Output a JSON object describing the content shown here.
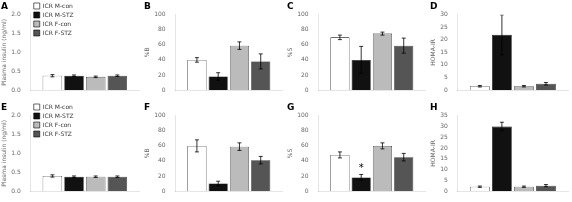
{
  "chart_data": [
    {
      "type": "bar",
      "title": "A",
      "ylabel": "Plasma insulin (ng/ml)",
      "categories": [
        null
      ],
      "series": [
        {
          "name": "ICR M-con",
          "color": "white",
          "values": [
            0.38
          ],
          "errors": [
            0.03
          ]
        },
        {
          "name": "ICR M-STZ",
          "color": "#111111",
          "values": [
            0.38
          ],
          "errors": [
            0.02
          ]
        },
        {
          "name": "ICR F-con",
          "color": "#bbbbbb",
          "values": [
            0.35
          ],
          "errors": [
            0.02
          ]
        },
        {
          "name": "ICR F-STZ",
          "color": "#555555",
          "values": [
            0.38
          ],
          "errors": [
            0.02
          ]
        }
      ],
      "ylim": [
        0,
        2.0
      ],
      "yticks": [
        {
          "value": 0.0,
          "label": "0.0"
        },
        {
          "value": 0.5,
          "label": "0.5"
        },
        {
          "value": 1.0,
          "label": "1.0"
        },
        {
          "value": 1.5,
          "label": "1.5"
        },
        {
          "value": 2.0,
          "label": "2.0"
        }
      ],
      "grid": false,
      "tick_labels": "y",
      "legend": "upper left"
    },
    {
      "type": "bar",
      "title": "B",
      "ylabel": "%B",
      "categories": [
        null
      ],
      "series": [
        {
          "name": "ICR M-con",
          "color": "white",
          "values": [
            40
          ],
          "errors": [
            3
          ]
        },
        {
          "name": "ICR M-STZ",
          "color": "#111111",
          "values": [
            18
          ],
          "errors": [
            5
          ]
        },
        {
          "name": "ICR F-con",
          "color": "#bbbbbb",
          "values": [
            59
          ],
          "errors": [
            5
          ]
        },
        {
          "name": "ICR F-STZ",
          "color": "#555555",
          "values": [
            38
          ],
          "errors": [
            10
          ]
        }
      ],
      "ylim": [
        0,
        100
      ],
      "yticks": [
        0,
        20,
        40,
        60,
        80,
        100
      ],
      "grid": false,
      "tick_labels": "y"
    },
    {
      "type": "bar",
      "title": "C",
      "ylabel": "%S",
      "categories": [
        null
      ],
      "series": [
        {
          "name": "ICR M-con",
          "color": "white",
          "values": [
            70
          ],
          "errors": [
            3
          ]
        },
        {
          "name": "ICR M-STZ",
          "color": "#111111",
          "values": [
            40
          ],
          "errors": [
            18
          ]
        },
        {
          "name": "ICR F-con",
          "color": "#bbbbbb",
          "values": [
            75
          ],
          "errors": [
            2
          ]
        },
        {
          "name": "ICR F-STZ",
          "color": "#555555",
          "values": [
            59
          ],
          "errors": [
            10
          ]
        }
      ],
      "ylim": [
        0,
        100
      ],
      "yticks": [
        0,
        20,
        40,
        60,
        80,
        100
      ],
      "grid": false,
      "tick_labels": "y"
    },
    {
      "type": "bar",
      "title": "D",
      "ylabel": "HOMA-IR",
      "categories": [
        null
      ],
      "series": [
        {
          "name": "ICR M-con",
          "color": "white",
          "values": [
            1.5
          ],
          "errors": [
            0.3
          ]
        },
        {
          "name": "ICR M-STZ",
          "color": "#111111",
          "values": [
            22
          ],
          "errors": [
            8
          ]
        },
        {
          "name": "ICR F-con",
          "color": "#bbbbbb",
          "values": [
            1.5
          ],
          "errors": [
            0.3
          ]
        },
        {
          "name": "ICR F-STZ",
          "color": "#555555",
          "values": [
            2.5
          ],
          "errors": [
            0.5
          ]
        }
      ],
      "ylim": [
        0,
        30
      ],
      "yticks": [
        0,
        5,
        10,
        15,
        20,
        25,
        30
      ],
      "grid": false,
      "tick_labels": "y"
    },
    {
      "type": "bar",
      "title": "E",
      "ylabel": "Plasma insulin (ng/ml)",
      "categories": [
        null
      ],
      "series": [
        {
          "name": "ICR M-con",
          "color": "white",
          "values": [
            0.4
          ],
          "errors": [
            0.03
          ]
        },
        {
          "name": "ICR M-STZ",
          "color": "#111111",
          "values": [
            0.38
          ],
          "errors": [
            0.02
          ]
        },
        {
          "name": "ICR F-con",
          "color": "#bbbbbb",
          "values": [
            0.38
          ],
          "errors": [
            0.02
          ]
        },
        {
          "name": "ICR F-STZ",
          "color": "#555555",
          "values": [
            0.38
          ],
          "errors": [
            0.02
          ]
        }
      ],
      "ylim": [
        0,
        2.0
      ],
      "yticks": [
        {
          "value": 0.0,
          "label": "0.0"
        },
        {
          "value": 0.5,
          "label": "0.5"
        },
        {
          "value": 1.0,
          "label": "1.0"
        },
        {
          "value": 1.5,
          "label": "1.5"
        },
        {
          "value": 2.0,
          "label": "2.0"
        }
      ],
      "grid": false,
      "tick_labels": "y",
      "legend": "upper left"
    },
    {
      "type": "bar",
      "title": "F",
      "ylabel": "%B",
      "categories": [
        null
      ],
      "series": [
        {
          "name": "ICR M-con",
          "color": "white",
          "values": [
            60
          ],
          "errors": [
            8
          ]
        },
        {
          "name": "ICR M-STZ",
          "color": "#111111",
          "values": [
            10
          ],
          "errors": [
            3
          ]
        },
        {
          "name": "ICR F-con",
          "color": "#bbbbbb",
          "values": [
            59
          ],
          "errors": [
            5
          ]
        },
        {
          "name": "ICR F-STZ",
          "color": "#555555",
          "values": [
            41
          ],
          "errors": [
            5
          ]
        }
      ],
      "ylim": [
        0,
        100
      ],
      "yticks": [
        0,
        20,
        40,
        60,
        80,
        100
      ],
      "grid": false,
      "tick_labels": "y"
    },
    {
      "type": "bar",
      "title": "G",
      "ylabel": "%S",
      "categories": [
        null
      ],
      "series": [
        {
          "name": "ICR M-con",
          "color": "white",
          "values": [
            48
          ],
          "errors": [
            4
          ]
        },
        {
          "name": "ICR M-STZ",
          "color": "#111111",
          "values": [
            18
          ],
          "errors": [
            4
          ]
        },
        {
          "name": "ICR F-con",
          "color": "#bbbbbb",
          "values": [
            60
          ],
          "errors": [
            4
          ]
        },
        {
          "name": "ICR F-STZ",
          "color": "#555555",
          "values": [
            45
          ],
          "errors": [
            5
          ]
        }
      ],
      "ylim": [
        0,
        100
      ],
      "yticks": [
        0,
        20,
        40,
        60,
        80,
        100
      ],
      "grid": false,
      "tick_labels": "y",
      "annotations": [
        {
          "text": "*",
          "series": "ICR M-STZ"
        }
      ]
    },
    {
      "type": "bar",
      "title": "H",
      "ylabel": "HOMA-IR",
      "categories": [
        null
      ],
      "series": [
        {
          "name": "ICR M-con",
          "color": "white",
          "values": [
            2
          ],
          "errors": [
            0.3
          ]
        },
        {
          "name": "ICR M-STZ",
          "color": "#111111",
          "values": [
            30
          ],
          "errors": [
            2
          ]
        },
        {
          "name": "ICR F-con",
          "color": "#bbbbbb",
          "values": [
            2
          ],
          "errors": [
            0.3
          ]
        },
        {
          "name": "ICR F-STZ",
          "color": "#555555",
          "values": [
            2.5
          ],
          "errors": [
            0.5
          ]
        }
      ],
      "ylim": [
        0,
        35
      ],
      "yticks": [
        0,
        5,
        10,
        15,
        20,
        25,
        30,
        35
      ],
      "grid": false,
      "tick_labels": "y"
    }
  ]
}
